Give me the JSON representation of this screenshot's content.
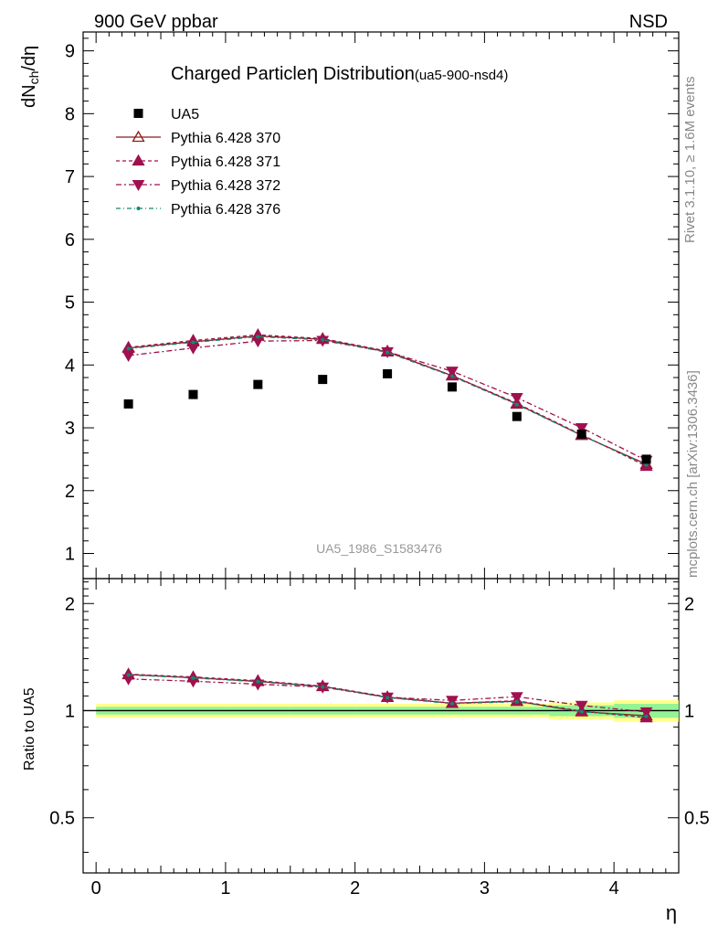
{
  "header": {
    "left": "900 GeV ppbar",
    "right": "NSD"
  },
  "side_labels": {
    "rivet": "Rivet 3.1.10, ≥ 1.6M events",
    "mcplots": "mcplots.cern.ch [arXiv:1306.3436]"
  },
  "chart_data": {
    "type": "line",
    "title": "Charged Particle",
    "title_symbol": "η",
    "title_rest": " Distribution",
    "title_suffix": "(ua5-900-nsd4)",
    "watermark": "UA5_1986_S1583476",
    "xlabel": "η",
    "ylabel_main": "dN",
    "ylabel_sub": "ch",
    "ylabel_tail": "/dη",
    "ratio_ylabel": "Ratio to UA5",
    "xlim": [
      -0.1,
      4.5
    ],
    "ylim": [
      0.6,
      9.3
    ],
    "ratio_ylim": [
      0.35,
      2.35
    ],
    "x_ticks": [
      0,
      1,
      2,
      3,
      4
    ],
    "x_tick_labels": [
      "0",
      "1",
      "2",
      "3",
      "4"
    ],
    "y_ticks": [
      1,
      2,
      3,
      4,
      5,
      6,
      7,
      8,
      9
    ],
    "y_tick_labels": [
      "1",
      "2",
      "3",
      "4",
      "5",
      "6",
      "7",
      "8",
      "9"
    ],
    "ratio_ticks": [
      0.5,
      1,
      2
    ],
    "ratio_tick_labels": [
      "0.5",
      "1",
      "2"
    ],
    "x": [
      0.25,
      0.75,
      1.25,
      1.75,
      2.25,
      2.75,
      3.25,
      3.75,
      4.25
    ],
    "data_series": {
      "name": "UA5",
      "values": [
        3.38,
        3.53,
        3.69,
        3.77,
        3.86,
        3.65,
        3.18,
        2.9,
        2.5
      ]
    },
    "series": [
      {
        "name": "Pythia 6.428 370",
        "color": "#8b1a1a",
        "dash": "",
        "marker": "triangle-up-open",
        "values": [
          4.27,
          4.37,
          4.46,
          4.41,
          4.21,
          3.83,
          3.38,
          2.88,
          2.42
        ]
      },
      {
        "name": "Pythia 6.428 371",
        "color": "#a0104f",
        "dash": "4,3",
        "marker": "triangle-up-filled",
        "values": [
          4.28,
          4.39,
          4.48,
          4.42,
          4.22,
          3.83,
          3.39,
          2.89,
          2.39
        ]
      },
      {
        "name": "Pythia 6.428 372",
        "color": "#a0104f",
        "dash": "6,3,2,3",
        "marker": "triangle-down-filled",
        "values": [
          4.15,
          4.27,
          4.38,
          4.39,
          4.21,
          3.9,
          3.48,
          3.0,
          2.48
        ]
      },
      {
        "name": "Pythia 6.428 376",
        "color": "#0f8a6a",
        "dash": "5,3,1,3",
        "marker": "dot",
        "values": [
          4.26,
          4.36,
          4.45,
          4.4,
          4.2,
          3.82,
          3.37,
          2.88,
          2.41
        ]
      }
    ],
    "ratio_band_yellow": [
      0.045,
      0.045,
      0.045,
      0.045,
      0.045,
      0.045,
      0.045,
      0.055,
      0.07
    ],
    "ratio_band_green": [
      0.025,
      0.025,
      0.025,
      0.025,
      0.025,
      0.025,
      0.025,
      0.035,
      0.045
    ]
  }
}
